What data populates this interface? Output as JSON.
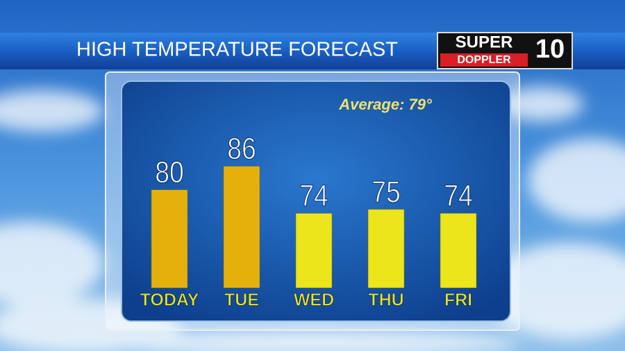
{
  "chart_data": {
    "type": "bar",
    "title": "HIGH TEMPERATURE FORECAST",
    "annotation": "Average: 79°",
    "logo": {
      "top": "SUPER",
      "bottom": "DOPPLER",
      "number": "10"
    },
    "categories": [
      "TODAY",
      "TUE",
      "WED",
      "THU",
      "FRI"
    ],
    "values": [
      80,
      86,
      74,
      75,
      74
    ],
    "colors": [
      "#e6b00c",
      "#e6b00c",
      "#ece51a",
      "#ece51a",
      "#ece51a"
    ],
    "ylim": [
      55,
      90
    ]
  }
}
